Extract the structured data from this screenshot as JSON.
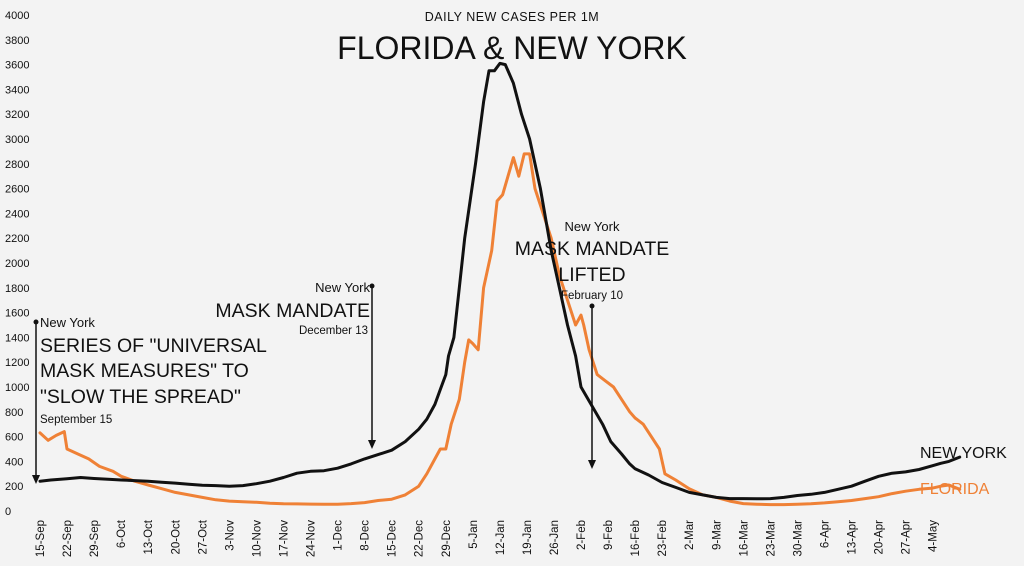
{
  "chart_data": {
    "type": "line",
    "subtitle": "DAILY NEW CASES PER 1M",
    "title": "FLORIDA & NEW YORK",
    "ylim": [
      0,
      4000
    ],
    "yticks": [
      0,
      200,
      400,
      600,
      800,
      1000,
      1200,
      1400,
      1600,
      1800,
      2000,
      2200,
      2400,
      2600,
      2800,
      3000,
      3200,
      3400,
      3600,
      3800,
      4000
    ],
    "categories": [
      "15-Sep",
      "22-Sep",
      "29-Sep",
      "6-Oct",
      "13-Oct",
      "20-Oct",
      "27-Oct",
      "3-Nov",
      "10-Nov",
      "17-Nov",
      "24-Nov",
      "1-Dec",
      "8-Dec",
      "15-Dec",
      "22-Dec",
      "29-Dec",
      "5-Jan",
      "12-Jan",
      "19-Jan",
      "26-Jan",
      "2-Feb",
      "9-Feb",
      "16-Feb",
      "23-Feb",
      "2-Mar",
      "9-Mar",
      "16-Mar",
      "23-Mar",
      "30-Mar",
      "6-Apr",
      "13-Apr",
      "20-Apr",
      "27-Apr",
      "4-May"
    ],
    "series": [
      {
        "name": "NEW YORK",
        "color": "#111111",
        "points": [
          [
            0,
            240
          ],
          [
            0.4,
            250
          ],
          [
            1,
            260
          ],
          [
            1.5,
            270
          ],
          [
            2,
            262
          ],
          [
            2.6,
            255
          ],
          [
            3,
            250
          ],
          [
            3.5,
            245
          ],
          [
            4,
            240
          ],
          [
            4.5,
            232
          ],
          [
            5,
            225
          ],
          [
            5.5,
            215
          ],
          [
            6,
            208
          ],
          [
            6.5,
            205
          ],
          [
            7,
            200
          ],
          [
            7.5,
            205
          ],
          [
            8,
            220
          ],
          [
            8.5,
            240
          ],
          [
            9,
            270
          ],
          [
            9.5,
            305
          ],
          [
            10,
            320
          ],
          [
            10.5,
            325
          ],
          [
            11,
            345
          ],
          [
            11.5,
            380
          ],
          [
            12,
            420
          ],
          [
            12.5,
            455
          ],
          [
            13,
            490
          ],
          [
            13.5,
            560
          ],
          [
            14,
            660
          ],
          [
            14.3,
            740
          ],
          [
            14.6,
            860
          ],
          [
            14.8,
            980
          ],
          [
            15,
            1100
          ],
          [
            15.1,
            1250
          ],
          [
            15.3,
            1400
          ],
          [
            15.5,
            1800
          ],
          [
            15.7,
            2200
          ],
          [
            15.9,
            2500
          ],
          [
            16.1,
            2800
          ],
          [
            16.4,
            3300
          ],
          [
            16.6,
            3550
          ],
          [
            16.8,
            3550
          ],
          [
            17,
            3610
          ],
          [
            17.2,
            3600
          ],
          [
            17.5,
            3450
          ],
          [
            17.8,
            3200
          ],
          [
            18.1,
            3000
          ],
          [
            18.5,
            2600
          ],
          [
            18.9,
            2100
          ],
          [
            19.2,
            1800
          ],
          [
            19.5,
            1500
          ],
          [
            19.8,
            1250
          ],
          [
            20,
            1000
          ],
          [
            20.4,
            850
          ],
          [
            20.8,
            700
          ],
          [
            21.1,
            560
          ],
          [
            21.5,
            460
          ],
          [
            21.8,
            380
          ],
          [
            22,
            340
          ],
          [
            22.5,
            290
          ],
          [
            23,
            230
          ],
          [
            23.5,
            190
          ],
          [
            24,
            150
          ],
          [
            24.5,
            130
          ],
          [
            25,
            110
          ],
          [
            25.5,
            100
          ],
          [
            26,
            100
          ],
          [
            26.5,
            98
          ],
          [
            27,
            100
          ],
          [
            27.5,
            110
          ],
          [
            28,
            125
          ],
          [
            28.5,
            135
          ],
          [
            29,
            150
          ],
          [
            29.5,
            175
          ],
          [
            30,
            200
          ],
          [
            30.5,
            240
          ],
          [
            31,
            280
          ],
          [
            31.5,
            305
          ],
          [
            32,
            315
          ],
          [
            32.5,
            335
          ],
          [
            33,
            365
          ],
          [
            33.3,
            385
          ],
          [
            33.6,
            400
          ],
          [
            34,
            435
          ]
        ]
      },
      {
        "name": "FLORIDA",
        "color": "#ef8136",
        "points": [
          [
            0,
            630
          ],
          [
            0.3,
            570
          ],
          [
            0.6,
            610
          ],
          [
            0.9,
            640
          ],
          [
            1,
            500
          ],
          [
            1.4,
            460
          ],
          [
            1.8,
            420
          ],
          [
            2.2,
            360
          ],
          [
            2.7,
            320
          ],
          [
            3,
            280
          ],
          [
            3.5,
            240
          ],
          [
            4,
            210
          ],
          [
            4.5,
            180
          ],
          [
            5,
            150
          ],
          [
            5.5,
            130
          ],
          [
            6,
            110
          ],
          [
            6.5,
            90
          ],
          [
            7,
            80
          ],
          [
            7.5,
            75
          ],
          [
            8,
            70
          ],
          [
            8.5,
            62
          ],
          [
            9,
            58
          ],
          [
            9.5,
            57
          ],
          [
            10,
            56
          ],
          [
            10.5,
            54
          ],
          [
            11,
            55
          ],
          [
            11.5,
            60
          ],
          [
            12,
            68
          ],
          [
            12.5,
            85
          ],
          [
            13,
            95
          ],
          [
            13.5,
            130
          ],
          [
            14,
            200
          ],
          [
            14.3,
            300
          ],
          [
            14.6,
            420
          ],
          [
            14.8,
            500
          ],
          [
            15,
            500
          ],
          [
            15.2,
            700
          ],
          [
            15.5,
            900
          ],
          [
            15.7,
            1200
          ],
          [
            15.85,
            1380
          ],
          [
            16,
            1350
          ],
          [
            16.2,
            1300
          ],
          [
            16.4,
            1800
          ],
          [
            16.7,
            2100
          ],
          [
            16.9,
            2500
          ],
          [
            17.1,
            2550
          ],
          [
            17.3,
            2700
          ],
          [
            17.5,
            2850
          ],
          [
            17.7,
            2700
          ],
          [
            17.9,
            2880
          ],
          [
            18.1,
            2880
          ],
          [
            18.3,
            2600
          ],
          [
            18.6,
            2400
          ],
          [
            18.9,
            2200
          ],
          [
            19.2,
            1900
          ],
          [
            19.5,
            1700
          ],
          [
            19.8,
            1500
          ],
          [
            20,
            1580
          ],
          [
            20.1,
            1500
          ],
          [
            20.3,
            1300
          ],
          [
            20.6,
            1100
          ],
          [
            20.9,
            1050
          ],
          [
            21.2,
            1000
          ],
          [
            21.5,
            900
          ],
          [
            21.8,
            800
          ],
          [
            22,
            750
          ],
          [
            22.3,
            700
          ],
          [
            22.6,
            600
          ],
          [
            22.9,
            500
          ],
          [
            23.1,
            300
          ],
          [
            23.5,
            250
          ],
          [
            24,
            180
          ],
          [
            24.5,
            130
          ],
          [
            25,
            110
          ],
          [
            25.5,
            80
          ],
          [
            26,
            60
          ],
          [
            26.5,
            55
          ],
          [
            27,
            52
          ],
          [
            27.5,
            52
          ],
          [
            28,
            54
          ],
          [
            28.5,
            58
          ],
          [
            29,
            65
          ],
          [
            29.5,
            75
          ],
          [
            30,
            85
          ],
          [
            30.5,
            100
          ],
          [
            31,
            115
          ],
          [
            31.5,
            140
          ],
          [
            32,
            160
          ],
          [
            32.5,
            175
          ],
          [
            33,
            185
          ],
          [
            33.3,
            200
          ],
          [
            33.6,
            210
          ],
          [
            34,
            175
          ]
        ]
      }
    ],
    "annotations": [
      {
        "line1": "New York",
        "big": [
          "SERIES OF \"UNIVERSAL",
          "MASK MEASURES\" TO",
          "\"SLOW THE SPREAD\""
        ],
        "date": "September 15"
      },
      {
        "line1": "New York",
        "big": [
          "MASK MANDATE"
        ],
        "date": "December 13"
      },
      {
        "line1": "New York",
        "big": [
          "MASK MANDATE",
          "LIFTED"
        ],
        "date": "February 10"
      }
    ],
    "series_labels": {
      "new_york": "NEW YORK",
      "florida": "FLORIDA"
    },
    "grid": false
  }
}
